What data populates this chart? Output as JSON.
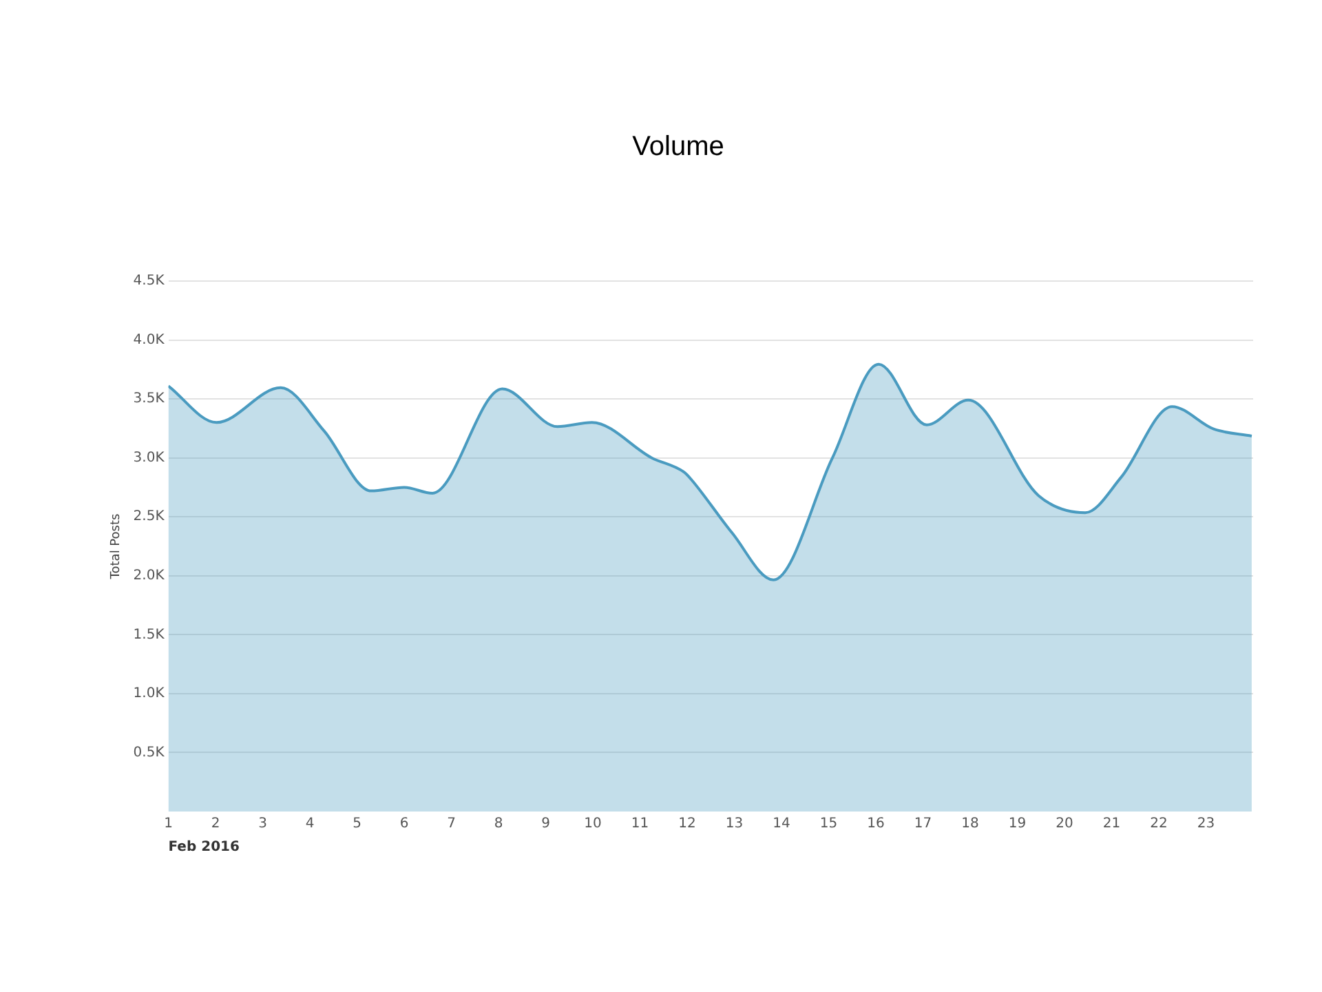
{
  "chart_data": {
    "type": "area",
    "title": "Volume",
    "xlabel": "Feb 2016",
    "ylabel": "Total Posts",
    "x": [
      1,
      2.02,
      3.38,
      4.3,
      5.3,
      6.0,
      6.6,
      8.08,
      9.25,
      9.98,
      11.25,
      11.93,
      12.08,
      12.95,
      13.83,
      15.08,
      16.06,
      17.08,
      17.96,
      19.45,
      20.44,
      21.2,
      22.28,
      23.16,
      23.97
    ],
    "series": [
      {
        "color": "#4a9bc0",
        "values": [
          3610,
          3300,
          3595,
          3230,
          2720,
          2750,
          2700,
          3585,
          3265,
          3300,
          3000,
          2880,
          2820,
          2365,
          1965,
          3000,
          3795,
          3280,
          3490,
          2680,
          2535,
          2835,
          3435,
          3245,
          3185
        ]
      }
    ],
    "xlim": [
      1,
      24
    ],
    "xticks": [
      1,
      2,
      3,
      4,
      5,
      6,
      7,
      8,
      9,
      10,
      11,
      12,
      13,
      14,
      15,
      16,
      17,
      18,
      19,
      20,
      21,
      22,
      23
    ],
    "ylim": [
      0,
      4500
    ],
    "yticks": [
      {
        "value": 500,
        "label": "0.5K"
      },
      {
        "value": 1000,
        "label": "1.0K"
      },
      {
        "value": 1500,
        "label": "1.5K"
      },
      {
        "value": 2000,
        "label": "2.0K"
      },
      {
        "value": 2500,
        "label": "2.5K"
      },
      {
        "value": 3000,
        "label": "3.0K"
      },
      {
        "value": 3500,
        "label": "3.5K"
      },
      {
        "value": 4000,
        "label": "4.0K"
      },
      {
        "value": 4500,
        "label": "4.5K"
      }
    ],
    "grid": "y",
    "legend": false,
    "marker": "none"
  }
}
